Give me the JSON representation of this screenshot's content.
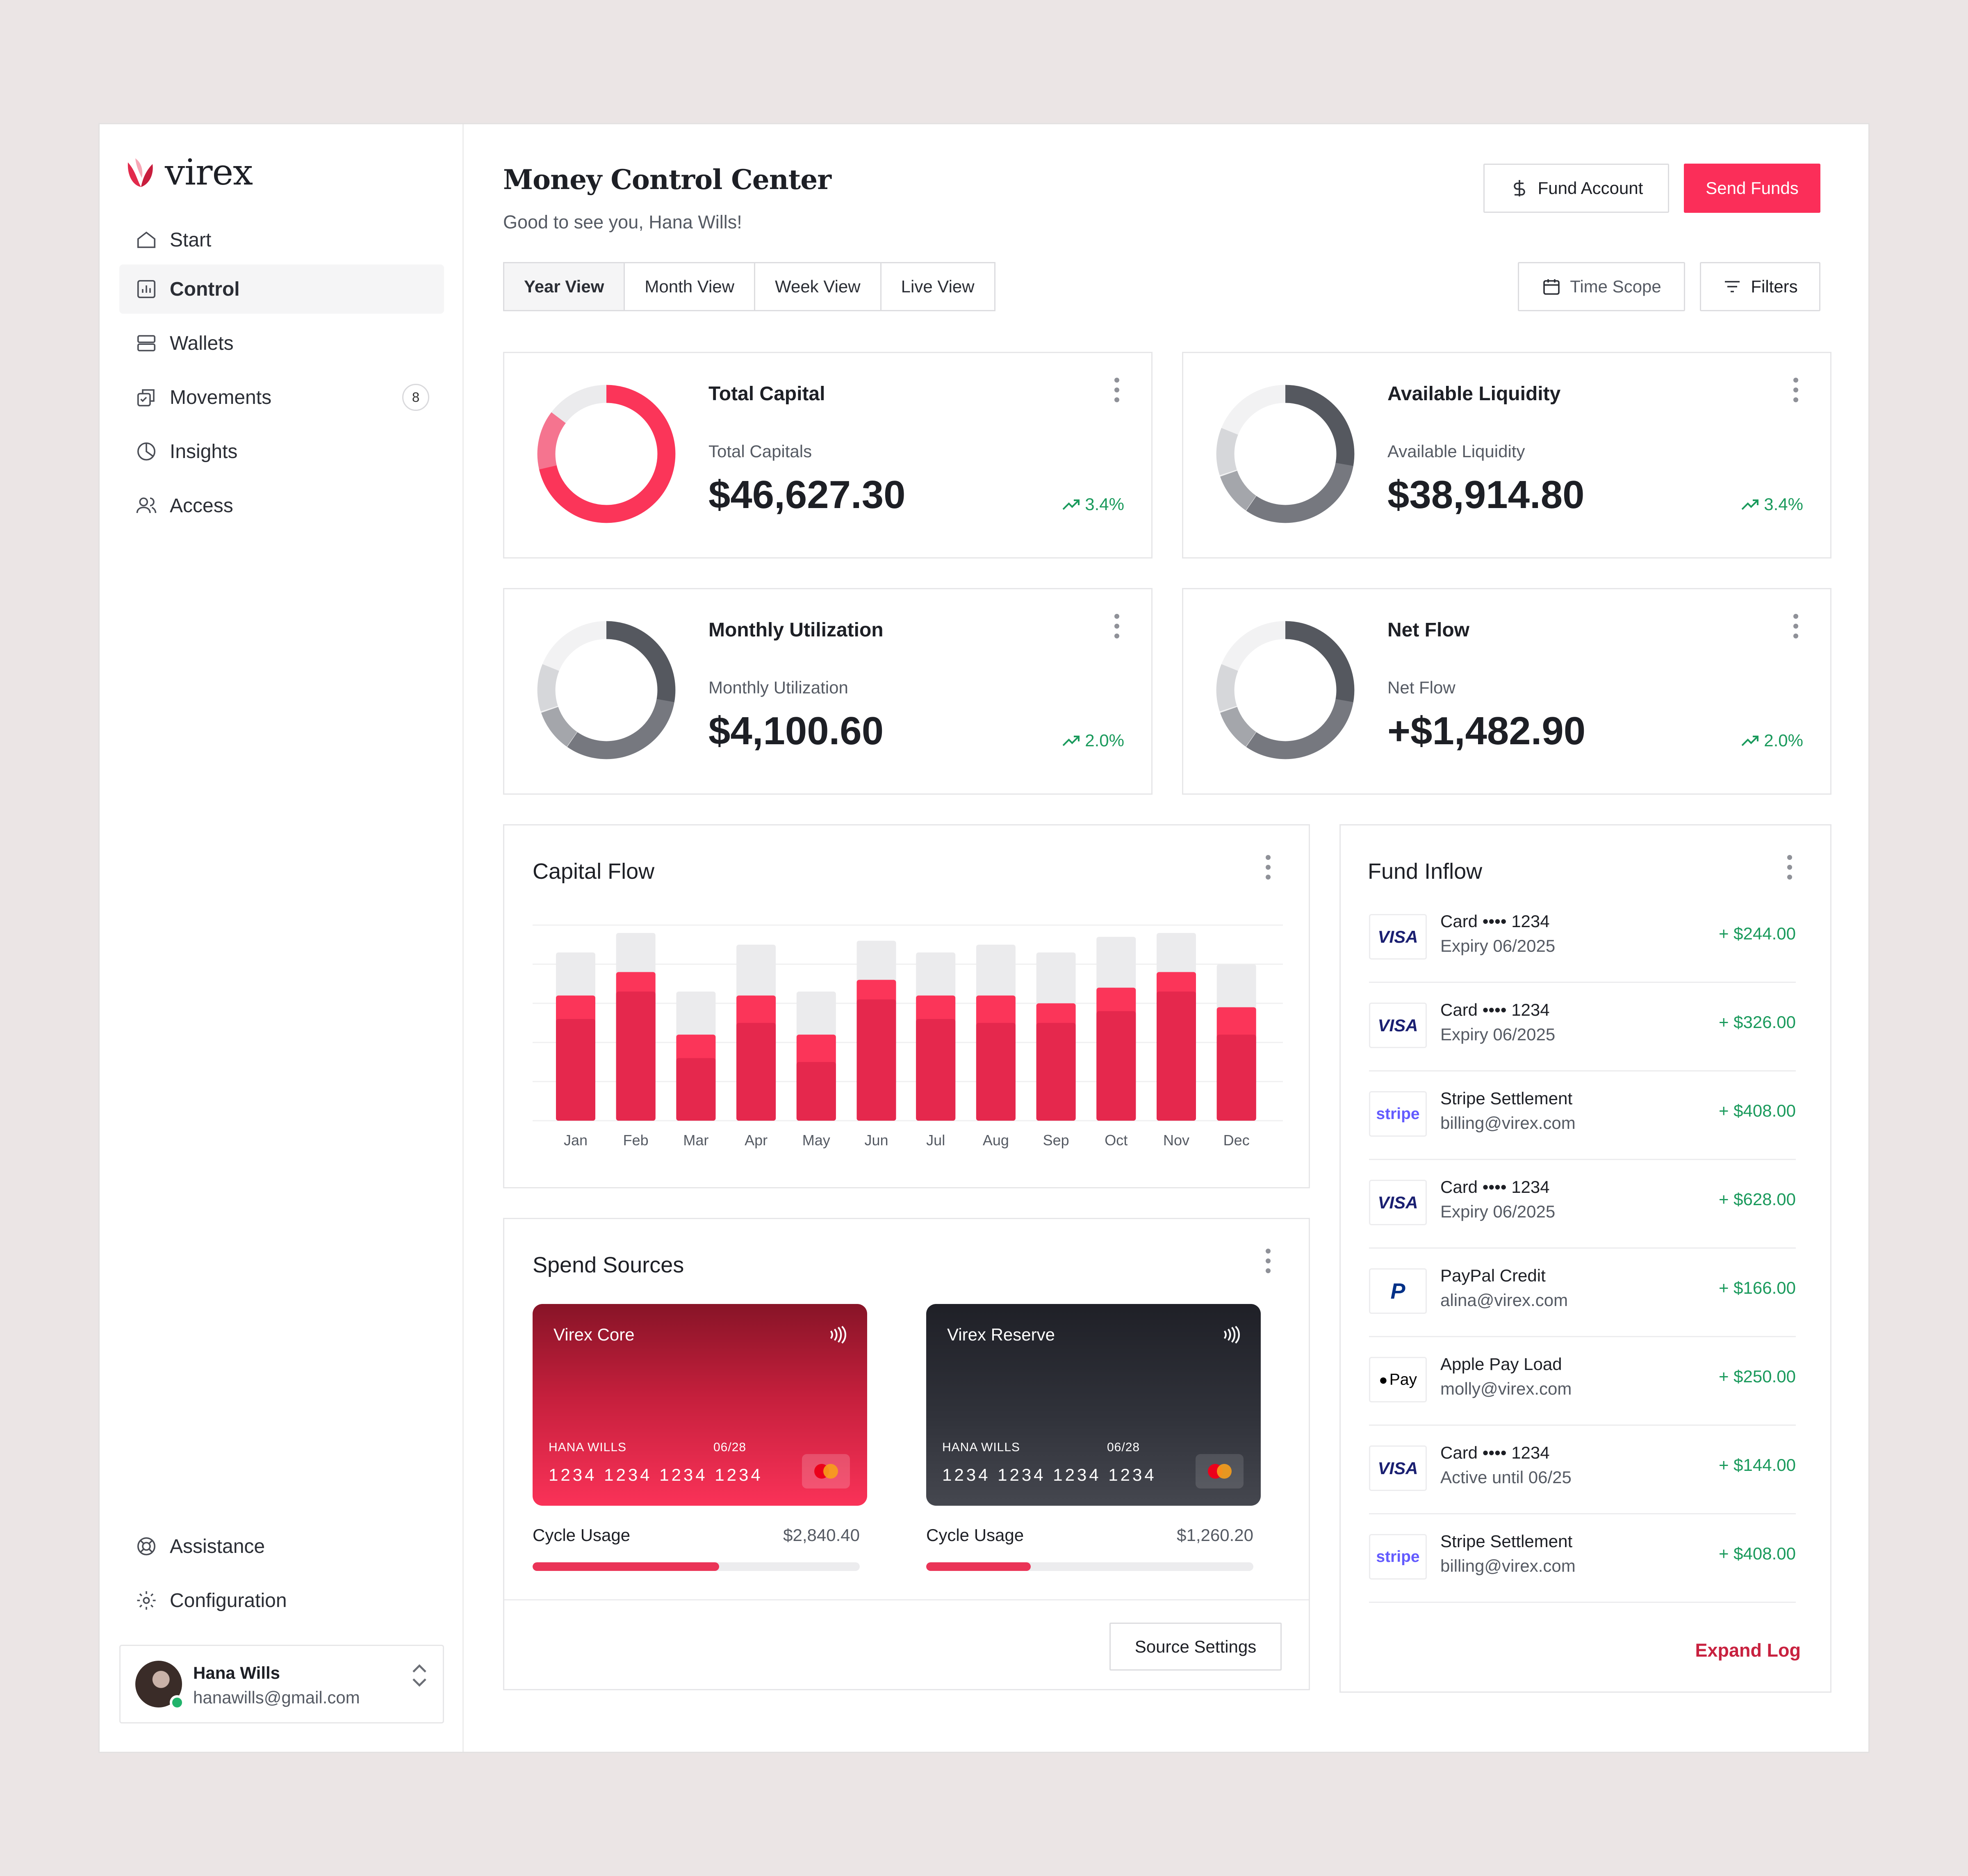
{
  "brand": {
    "name": "virex"
  },
  "sidebar": {
    "items": [
      {
        "label": "Start",
        "icon": "home-icon"
      },
      {
        "label": "Control",
        "icon": "chart-icon",
        "active": true
      },
      {
        "label": "Wallets",
        "icon": "wallet-icon"
      },
      {
        "label": "Movements",
        "icon": "movements-icon",
        "badge": "8"
      },
      {
        "label": "Insights",
        "icon": "pie-icon"
      },
      {
        "label": "Access",
        "icon": "users-icon"
      }
    ],
    "bottom": [
      {
        "label": "Assistance",
        "icon": "lifebuoy-icon"
      },
      {
        "label": "Configuration",
        "icon": "gear-icon"
      }
    ],
    "user": {
      "name": "Hana Wills",
      "email": "hanawills@gmail.com"
    }
  },
  "header": {
    "title": "Money Control Center",
    "subtitle": "Good to see you, Hana Wills!",
    "fund_label": "Fund Account",
    "send_label": "Send Funds",
    "time_scope_label": "Time Scope",
    "filters_label": "Filters"
  },
  "tabs": [
    "Year View",
    "Month View",
    "Week View",
    "Live View"
  ],
  "stats": [
    {
      "title": "Total Capital",
      "sub": "Total Capitals",
      "value": "$46,627.30",
      "change": "3.4%",
      "theme": "red"
    },
    {
      "title": "Available Liquidity",
      "sub": "Available Liquidity",
      "value": "$38,914.80",
      "change": "3.4%",
      "theme": "gray"
    },
    {
      "title": "Monthly Utilization",
      "sub": "Monthly Utilization",
      "value": "$4,100.60",
      "change": "2.0%",
      "theme": "gray"
    },
    {
      "title": "Net Flow",
      "sub": "Net Flow",
      "value": "+$1,482.90",
      "change": "2.0%",
      "theme": "gray"
    }
  ],
  "capital_flow": {
    "title": "Capital Flow"
  },
  "chart_data": {
    "type": "bar",
    "categories": [
      "Jan",
      "Feb",
      "Mar",
      "Apr",
      "May",
      "Jun",
      "Jul",
      "Aug",
      "Sep",
      "Oct",
      "Nov",
      "Dec"
    ],
    "series": [
      {
        "values": [
          26,
          33,
          16,
          25,
          15,
          31,
          26,
          25,
          25,
          28,
          33,
          22
        ]
      },
      {
        "values": [
          32,
          38,
          22,
          32,
          22,
          36,
          32,
          32,
          30,
          34,
          38,
          29
        ]
      },
      {
        "values": [
          43,
          48,
          33,
          45,
          33,
          46,
          43,
          45,
          43,
          47,
          48,
          40
        ]
      }
    ],
    "ylim": [
      0,
      50
    ],
    "colors": [
      "#e5284d",
      "#fb3559",
      "#ebebed"
    ],
    "grid": true
  },
  "spend": {
    "title": "Spend Sources",
    "cards": [
      {
        "name": "Virex Core",
        "holder": "HANA WILLS",
        "expiry": "06/28",
        "number": "1234 1234 1234 1234",
        "usage_label": "Cycle Usage",
        "usage_value": "$2,840.40",
        "usage_fraction": 0.57
      },
      {
        "name": "Virex Reserve",
        "holder": "HANA WILLS",
        "expiry": "06/28",
        "number": "1234 1234 1234 1234",
        "usage_label": "Cycle Usage",
        "usage_value": "$1,260.20",
        "usage_fraction": 0.32
      }
    ],
    "settings_label": "Source Settings"
  },
  "inflow": {
    "title": "Fund Inflow",
    "items": [
      {
        "brand": "VISA",
        "line1": "Card •••• 1234",
        "line2": "Expiry 06/2025",
        "amount": "+ $244.00"
      },
      {
        "brand": "VISA",
        "line1": "Card •••• 1234",
        "line2": "Expiry 06/2025",
        "amount": "+ $326.00"
      },
      {
        "brand": "stripe",
        "line1": "Stripe Settlement",
        "line2": "billing@virex.com",
        "amount": "+ $408.00"
      },
      {
        "brand": "VISA",
        "line1": "Card •••• 1234",
        "line2": "Expiry 06/2025",
        "amount": "+ $628.00"
      },
      {
        "brand": "P",
        "line1": "PayPal Credit",
        "line2": "alina@virex.com",
        "amount": "+ $166.00"
      },
      {
        "brand": "Pay",
        "line1": "Apple Pay Load",
        "line2": "molly@virex.com",
        "amount": "+ $250.00"
      },
      {
        "brand": "VISA",
        "line1": "Card •••• 1234",
        "line2": "Active until 06/25",
        "amount": "+ $144.00"
      },
      {
        "brand": "stripe",
        "line1": "Stripe Settlement",
        "line2": "billing@virex.com",
        "amount": "+ $408.00"
      }
    ],
    "expand_label": "Expand Log"
  }
}
